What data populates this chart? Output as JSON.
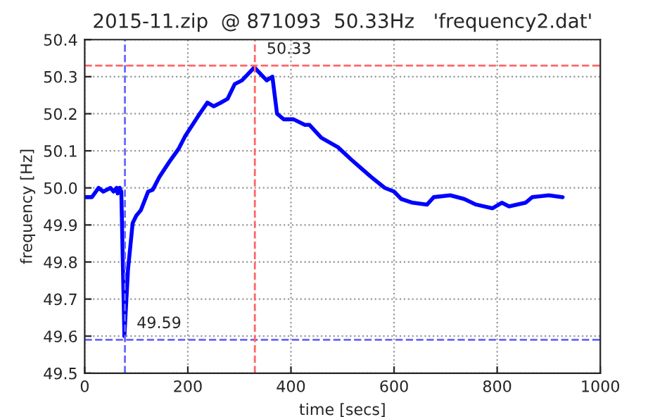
{
  "chart_data": {
    "type": "line",
    "title": "2015-11.zip  @ 871093  50.33Hz   'frequency2.dat'",
    "xlabel": "time [secs]",
    "ylabel": "frequency [Hz]",
    "x": [
      0,
      14,
      27,
      36,
      50,
      56,
      62,
      64,
      68,
      71,
      77,
      84,
      93,
      100,
      109,
      123,
      132,
      145,
      164,
      182,
      195,
      209,
      223,
      238,
      250,
      264,
      277,
      291,
      305,
      329,
      353,
      364,
      373,
      386,
      405,
      427,
      436,
      459,
      491,
      518,
      555,
      582,
      600,
      614,
      636,
      664,
      677,
      709,
      736,
      759,
      791,
      809,
      823,
      855,
      868,
      900,
      927
    ],
    "series": [
      {
        "color": "#0000ff",
        "values": [
          49.975,
          49.975,
          50.0,
          49.99,
          50.0,
          49.99,
          50.0,
          49.985,
          50.0,
          49.99,
          49.6,
          49.78,
          49.905,
          49.925,
          49.94,
          49.99,
          49.995,
          50.03,
          50.07,
          50.105,
          50.14,
          50.17,
          50.2,
          50.23,
          50.22,
          50.23,
          50.24,
          50.28,
          50.29,
          50.325,
          50.29,
          50.3,
          50.2,
          50.185,
          50.185,
          50.17,
          50.17,
          50.135,
          50.11,
          50.075,
          50.03,
          50.0,
          49.99,
          49.97,
          49.96,
          49.955,
          49.975,
          49.98,
          49.97,
          49.955,
          49.945,
          49.96,
          49.95,
          49.96,
          49.975,
          49.98,
          49.975
        ]
      }
    ],
    "xlim": [
      0,
      1000
    ],
    "xticks": [
      0,
      200,
      400,
      600,
      800,
      1000
    ],
    "ylim": [
      49.5,
      50.4
    ],
    "yticks": [
      {
        "value": 49.5,
        "label": "49.5"
      },
      {
        "value": 49.6,
        "label": "49.6"
      },
      {
        "value": 49.7,
        "label": "49.7"
      },
      {
        "value": 49.8,
        "label": "49.8"
      },
      {
        "value": 49.9,
        "label": "49.9"
      },
      {
        "value": 50.0,
        "label": "50.0"
      },
      {
        "value": 50.1,
        "label": "50.1"
      },
      {
        "value": 50.2,
        "label": "50.2"
      },
      {
        "value": 50.3,
        "label": "50.3"
      },
      {
        "value": 50.4,
        "label": "50.4"
      }
    ],
    "ref_lines": [
      {
        "axis": "x",
        "value": 78,
        "color": "#6666ff",
        "line_style": "dashed"
      },
      {
        "axis": "y",
        "value": 49.59,
        "color": "#6666ff",
        "line_style": "dashed"
      },
      {
        "axis": "x",
        "value": 330,
        "color": "#ff6666",
        "line_style": "dashed"
      },
      {
        "axis": "y",
        "value": 50.33,
        "color": "#ff6666",
        "line_style": "dashed"
      }
    ],
    "annotations": [
      {
        "text": "50.33",
        "x": 330,
        "y": 50.33
      },
      {
        "text": "49.59",
        "x": 78,
        "y": 49.59
      }
    ],
    "grid": true,
    "legend": false,
    "marker": "none",
    "line_style": "solid"
  }
}
